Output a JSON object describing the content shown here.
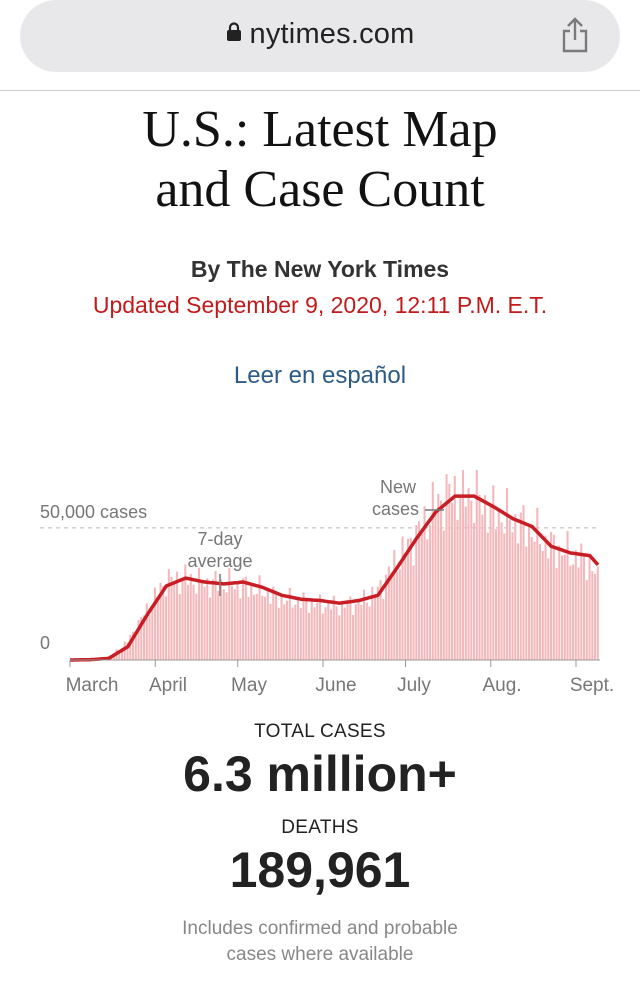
{
  "browser": {
    "url": "nytimes.com",
    "lock_icon": "lock-icon",
    "share_icon": "share-icon"
  },
  "headline": {
    "line1": "U.S.: Latest Map",
    "line2": "and Case Count"
  },
  "byline": "By The New York Times",
  "updated": "Updated September 9, 2020, 12:11 P.M. E.T.",
  "spanish_link": "Leer en español",
  "colors": {
    "accent_red": "#c21a1a",
    "bar_pink": "#f4b8bb",
    "line_red": "#c81d24",
    "link_blue": "#2b5b86"
  },
  "chart_data": {
    "type": "bar",
    "title": "",
    "xlabel": "",
    "ylabel": "",
    "ylim": [
      0,
      70000
    ],
    "x_ticks": [
      "March",
      "April",
      "May",
      "June",
      "July",
      "Aug.",
      "Sept."
    ],
    "y_ticks": [
      {
        "value": 0,
        "label": "0"
      },
      {
        "value": 50000,
        "label": "50,000 cases"
      }
    ],
    "annotations": {
      "new_cases_line1": "New",
      "new_cases_line2": "cases",
      "average_line1": "7-day",
      "average_line2": "average"
    },
    "series": [
      {
        "name": "New cases",
        "kind": "bars",
        "points": [
          [
            "Mar 1",
            10
          ],
          [
            "Mar 8",
            150
          ],
          [
            "Mar 15",
            900
          ],
          [
            "Mar 22",
            7000
          ],
          [
            "Mar 29",
            19000
          ],
          [
            "Apr 5",
            30000
          ],
          [
            "Apr 12",
            31000
          ],
          [
            "Apr 19",
            29000
          ],
          [
            "Apr 26",
            29000
          ],
          [
            "May 3",
            28000
          ],
          [
            "May 10",
            26000
          ],
          [
            "May 17",
            23000
          ],
          [
            "May 24",
            22000
          ],
          [
            "May 31",
            21000
          ],
          [
            "Jun 7",
            20500
          ],
          [
            "Jun 14",
            21500
          ],
          [
            "Jun 21",
            26000
          ],
          [
            "Jun 28",
            38000
          ],
          [
            "Jul 5",
            47000
          ],
          [
            "Jul 12",
            59000
          ],
          [
            "Jul 19",
            64000
          ],
          [
            "Jul 26",
            62000
          ],
          [
            "Aug 2",
            56000
          ],
          [
            "Aug 9",
            53000
          ],
          [
            "Aug 16",
            49000
          ],
          [
            "Aug 23",
            43000
          ],
          [
            "Aug 30",
            40000
          ],
          [
            "Sep 6",
            37000
          ],
          [
            "Sep 9",
            30000
          ]
        ]
      },
      {
        "name": "7-day average",
        "kind": "line",
        "points": [
          [
            "Mar 1",
            0
          ],
          [
            "Mar 8",
            100
          ],
          [
            "Mar 15",
            600
          ],
          [
            "Mar 22",
            5000
          ],
          [
            "Mar 29",
            17000
          ],
          [
            "Apr 5",
            28000
          ],
          [
            "Apr 12",
            31000
          ],
          [
            "Apr 19",
            29500
          ],
          [
            "Apr 26",
            28800
          ],
          [
            "May 3",
            29500
          ],
          [
            "May 10",
            27500
          ],
          [
            "May 17",
            24500
          ],
          [
            "May 24",
            23000
          ],
          [
            "May 31",
            22500
          ],
          [
            "Jun 7",
            21500
          ],
          [
            "Jun 14",
            22500
          ],
          [
            "Jun 21",
            24500
          ],
          [
            "Jun 28",
            35000
          ],
          [
            "Jul 5",
            46000
          ],
          [
            "Jul 12",
            56000
          ],
          [
            "Jul 19",
            62000
          ],
          [
            "Jul 26",
            62000
          ],
          [
            "Aug 2",
            58000
          ],
          [
            "Aug 9",
            53500
          ],
          [
            "Aug 16",
            50500
          ],
          [
            "Aug 23",
            43000
          ],
          [
            "Aug 30",
            40500
          ],
          [
            "Sep 6",
            39500
          ],
          [
            "Sep 9",
            36000
          ]
        ]
      }
    ]
  },
  "stats": {
    "total_cases_label": "TOTAL CASES",
    "total_cases_value": "6.3 million+",
    "deaths_label": "DEATHS",
    "deaths_value": "189,961"
  },
  "note": {
    "line1": "Includes confirmed and probable",
    "line2": "cases where available"
  }
}
